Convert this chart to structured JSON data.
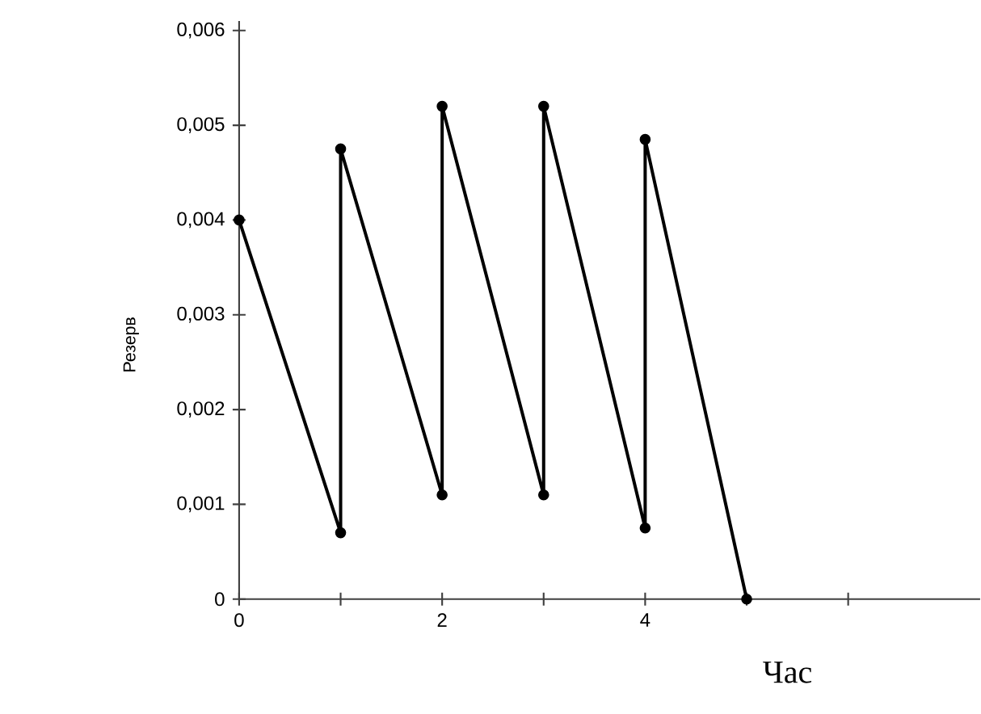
{
  "chart_data": {
    "type": "line",
    "xlabel": "Час",
    "ylabel": "Резерв",
    "x": [
      0,
      1,
      1,
      2,
      2,
      3,
      3,
      4,
      4,
      5
    ],
    "values": [
      0.004,
      0.0007,
      0.00475,
      0.0011,
      0.0052,
      0.0011,
      0.0052,
      0.00075,
      0.00485,
      0
    ],
    "color": "#000000",
    "marker": "circle",
    "line_style": "solid",
    "xlim": [
      0,
      7.3
    ],
    "ylim": [
      0,
      0.0061
    ],
    "xticks": [
      0,
      {
        "value": 1,
        "label": null
      },
      2,
      {
        "value": 3,
        "label": null
      },
      4,
      {
        "value": 5,
        "label": null
      },
      {
        "value": 6,
        "label": null
      }
    ],
    "yticks": [
      0,
      {
        "value": 0.001,
        "label": "0,001"
      },
      {
        "value": 0.002,
        "label": "0,002"
      },
      {
        "value": 0.003,
        "label": "0,003"
      },
      {
        "value": 0.004,
        "label": "0,004"
      },
      {
        "value": 0.005,
        "label": "0,005"
      },
      {
        "value": 0.006,
        "label": "0,006"
      }
    ]
  }
}
